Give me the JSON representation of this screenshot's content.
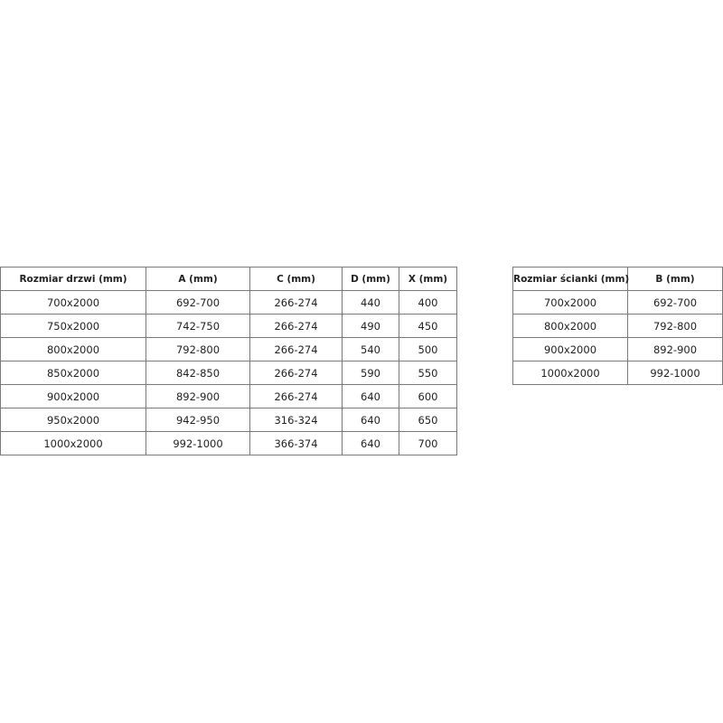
{
  "door_table": {
    "headers": [
      "Rozmiar drzwi (mm)",
      "A (mm)",
      "C (mm)",
      "D (mm)",
      "X (mm)"
    ],
    "rows": [
      [
        "700x2000",
        "692-700",
        "266-274",
        "440",
        "400"
      ],
      [
        "750x2000",
        "742-750",
        "266-274",
        "490",
        "450"
      ],
      [
        "800x2000",
        "792-800",
        "266-274",
        "540",
        "500"
      ],
      [
        "850x2000",
        "842-850",
        "266-274",
        "590",
        "550"
      ],
      [
        "900x2000",
        "892-900",
        "266-274",
        "640",
        "600"
      ],
      [
        "950x2000",
        "942-950",
        "316-324",
        "640",
        "650"
      ],
      [
        "1000x2000",
        "992-1000",
        "366-374",
        "640",
        "700"
      ]
    ]
  },
  "wall_table": {
    "headers": [
      "Rozmiar ścianki (mm)",
      "B (mm)"
    ],
    "rows": [
      [
        "700x2000",
        "692-700"
      ],
      [
        "800x2000",
        "792-800"
      ],
      [
        "900x2000",
        "892-900"
      ],
      [
        "1000x2000",
        "992-1000"
      ]
    ]
  }
}
